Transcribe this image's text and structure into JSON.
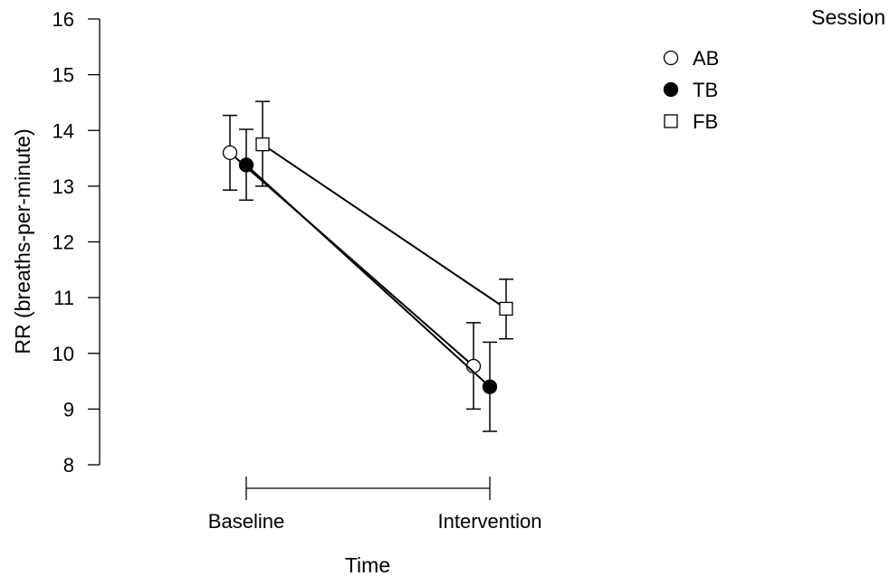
{
  "chart_data": {
    "type": "line",
    "xlabel": "Time",
    "ylabel": "RR (breaths-per-minute)",
    "categories": [
      "Baseline",
      "Intervention"
    ],
    "ylim": [
      8,
      16
    ],
    "yticks": [
      "8",
      "9",
      "10",
      "11",
      "12",
      "13",
      "14",
      "15",
      "16"
    ],
    "grid": false,
    "legend": {
      "title": "Session",
      "placement": "top-right"
    },
    "series": [
      {
        "name": "AB",
        "marker": "circle-open",
        "values": [
          13.6,
          9.77
        ],
        "error_low": [
          12.93,
          9.0
        ],
        "error_high": [
          14.27,
          10.55
        ]
      },
      {
        "name": "TB",
        "marker": "circle-filled",
        "values": [
          13.38,
          9.4
        ],
        "error_low": [
          12.75,
          8.6
        ],
        "error_high": [
          14.02,
          10.2
        ]
      },
      {
        "name": "FB",
        "marker": "square-open",
        "values": [
          13.75,
          10.8
        ],
        "error_low": [
          13.0,
          10.26
        ],
        "error_high": [
          14.52,
          11.33
        ]
      }
    ]
  }
}
